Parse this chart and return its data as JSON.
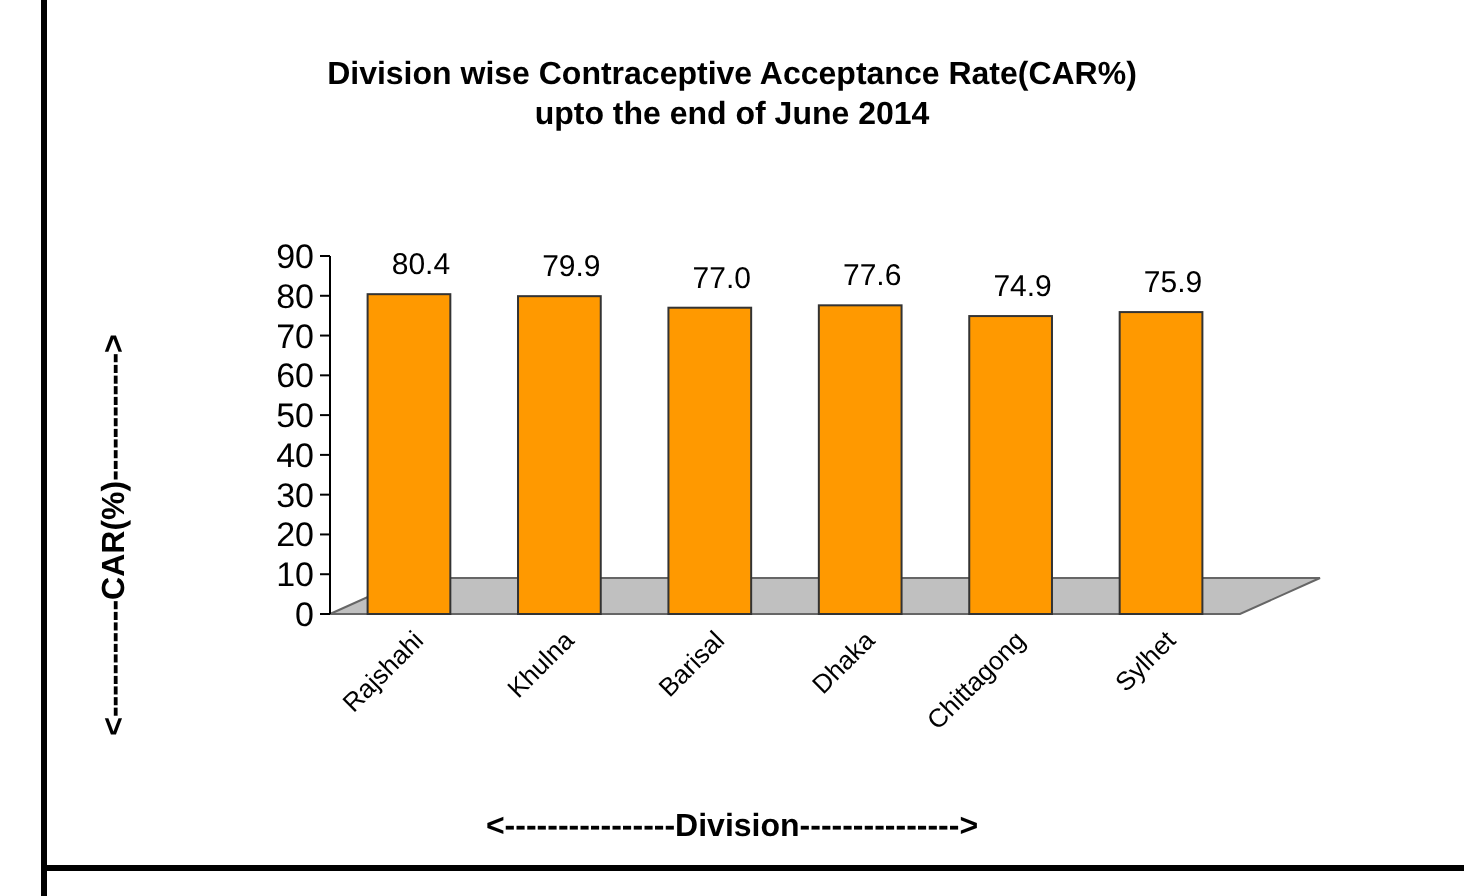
{
  "chart_data": {
    "type": "bar",
    "title": "Division wise Contraceptive Acceptance Rate(CAR%)\nupto the end of June 2014",
    "xlabel": "<----------------Division--------------->",
    "ylabel": "<-----------CAR(%)------------>",
    "categories": [
      "Rajshahi",
      "Khulna",
      "Barisal",
      "Dhaka",
      "Chittagong",
      "Sylhet"
    ],
    "values": [
      80.4,
      79.9,
      77.0,
      77.6,
      74.9,
      75.9
    ],
    "color": "#ff9900",
    "ylim": [
      0,
      90
    ],
    "yticks": [
      0,
      10,
      20,
      30,
      40,
      50,
      60,
      70,
      80,
      90
    ],
    "value_labels": [
      "80.4",
      "79.9",
      "77.0",
      "77.6",
      "74.9",
      "75.9"
    ]
  }
}
